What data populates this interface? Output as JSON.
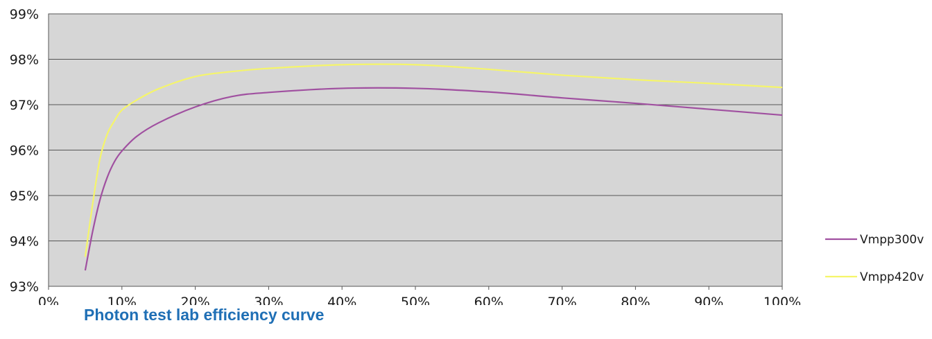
{
  "caption": "Photon test lab efficiency curve",
  "chart_data": {
    "type": "line",
    "title": "",
    "xlabel": "",
    "ylabel": "",
    "xlim": [
      0,
      100
    ],
    "ylim": [
      93,
      99
    ],
    "x_ticks": [
      "0%",
      "10%",
      "20%",
      "30%",
      "40%",
      "50%",
      "60%",
      "70%",
      "80%",
      "90%",
      "100%"
    ],
    "y_ticks": [
      "93%",
      "94%",
      "95%",
      "96%",
      "97%",
      "98%",
      "99%"
    ],
    "grid": "horizontal",
    "background_color": "#d6d6d6",
    "legend_position": "right",
    "series": [
      {
        "name": "Vmpp300v",
        "color": "#a050a0",
        "x": [
          5,
          6,
          7,
          8,
          9,
          10,
          12,
          15,
          20,
          25,
          30,
          40,
          50,
          60,
          70,
          80,
          90,
          100
        ],
        "y": [
          93.35,
          94.2,
          94.9,
          95.4,
          95.75,
          95.98,
          96.3,
          96.6,
          96.95,
          97.18,
          97.27,
          97.36,
          97.36,
          97.28,
          97.15,
          97.03,
          96.9,
          96.77
        ]
      },
      {
        "name": "Vmpp420v",
        "color": "#f5f56a",
        "x": [
          5,
          6,
          7,
          8,
          9,
          10,
          12,
          15,
          20,
          25,
          30,
          40,
          50,
          60,
          70,
          80,
          90,
          100
        ],
        "y": [
          93.65,
          94.8,
          95.8,
          96.35,
          96.65,
          96.88,
          97.1,
          97.35,
          97.62,
          97.73,
          97.8,
          97.88,
          97.88,
          97.78,
          97.65,
          97.55,
          97.47,
          97.38
        ]
      }
    ]
  }
}
